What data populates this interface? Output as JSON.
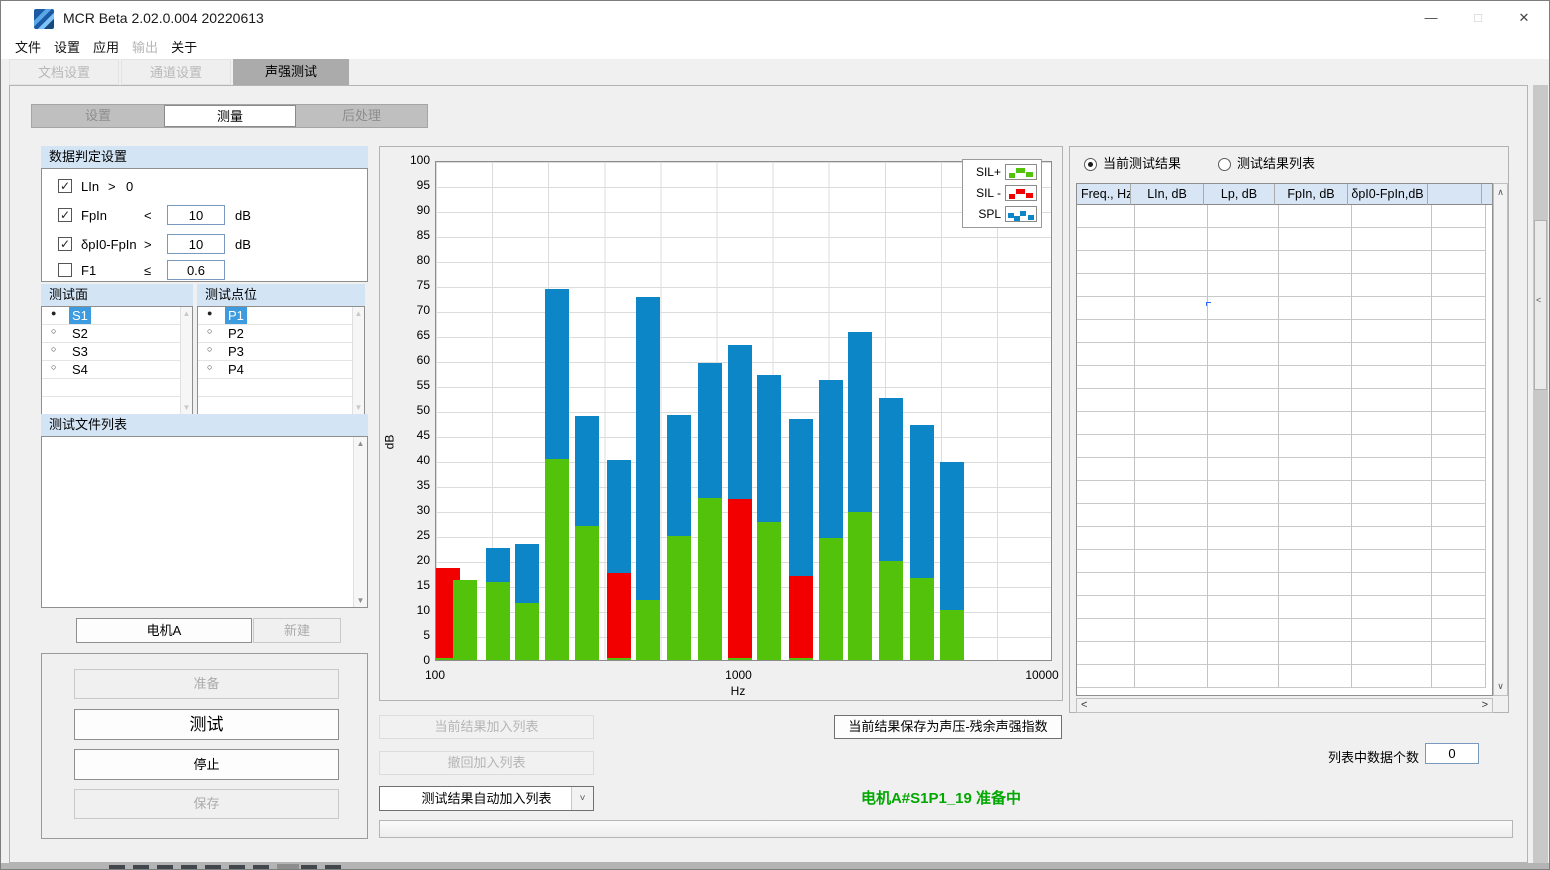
{
  "window": {
    "title": "MCR Beta 2.02.0.004 20220613",
    "minimize_glyph": "—",
    "maximize_glyph": "□",
    "close_glyph": "✕"
  },
  "menu": [
    {
      "label": "文件",
      "enabled": true
    },
    {
      "label": "设置",
      "enabled": true
    },
    {
      "label": "应用",
      "enabled": true
    },
    {
      "label": "输出",
      "enabled": false
    },
    {
      "label": "关于",
      "enabled": true
    }
  ],
  "main_tabs": [
    {
      "label": "文档设置",
      "active": false
    },
    {
      "label": "通道设置",
      "active": false
    },
    {
      "label": "声强测试",
      "active": true
    }
  ],
  "sub_tabs": [
    {
      "label": "设置",
      "active": false
    },
    {
      "label": "测量",
      "active": true
    },
    {
      "label": "后处理",
      "active": false
    }
  ],
  "criteria": {
    "header": "数据判定设置",
    "rows": [
      {
        "checked": true,
        "name": "LIn",
        "op": ">",
        "value": "0",
        "boxed": false,
        "unit": ""
      },
      {
        "checked": true,
        "name": "FpIn",
        "op": "<",
        "value": "10",
        "boxed": true,
        "unit": "dB"
      },
      {
        "checked": true,
        "name": "δpI0-FpIn",
        "op": ">",
        "value": "10",
        "boxed": true,
        "unit": "dB"
      },
      {
        "checked": false,
        "name": "F1",
        "op": "≤",
        "value": "0.6",
        "boxed": true,
        "unit": ""
      }
    ]
  },
  "surface_list": {
    "header": "测试面",
    "items": [
      {
        "label": "S1",
        "selected": true
      },
      {
        "label": "S2",
        "selected": false
      },
      {
        "label": "S3",
        "selected": false
      },
      {
        "label": "S4",
        "selected": false
      }
    ],
    "empty_rows": 2
  },
  "point_list": {
    "header": "测试点位",
    "items": [
      {
        "label": "P1",
        "selected": true
      },
      {
        "label": "P2",
        "selected": false
      },
      {
        "label": "P3",
        "selected": false
      },
      {
        "label": "P4",
        "selected": false
      }
    ],
    "empty_rows": 2
  },
  "file_list": {
    "header": "测试文件列表"
  },
  "project": {
    "current": "电机A",
    "new_label": "新建"
  },
  "run_buttons": [
    {
      "label": "准备",
      "enabled": false,
      "big": false
    },
    {
      "label": "测试",
      "enabled": true,
      "big": true
    },
    {
      "label": "停止",
      "enabled": true,
      "big": false
    },
    {
      "label": "保存",
      "enabled": false,
      "big": false
    }
  ],
  "actions": {
    "add_current": "当前结果加入列表",
    "undo_add": "撤回加入列表",
    "auto_add": "测试结果自动加入列表",
    "save_as_pressure": "当前结果保存为声压-残余声强指数"
  },
  "status": {
    "text": "电机A#S1P1_19  准备中",
    "color": "#00a800"
  },
  "results": {
    "radio_current": {
      "label": "当前测试结果",
      "selected": true
    },
    "radio_list": {
      "label": "测试结果列表",
      "selected": false
    },
    "columns": [
      "Freq., Hz",
      "LIn, dB",
      "Lp, dB",
      "FpIn, dB",
      "δpI0-FpIn,dB",
      ""
    ],
    "empty_row_count": 21,
    "count_label": "列表中数据个数",
    "count_value": "0"
  },
  "chart_data": {
    "type": "bar",
    "x_scale": "log",
    "title": "",
    "xlabel": "Hz",
    "ylabel": "dB",
    "ylim": [
      0,
      100
    ],
    "ytick_step": 5,
    "xtick_labels": [
      "100",
      "1000",
      "10000"
    ],
    "grid": true,
    "legend_position": "top-right",
    "legend": [
      {
        "label": "SIL+",
        "color": "#53c20b"
      },
      {
        "label": "SIL -",
        "color": "#f20000"
      },
      {
        "label": "SPL",
        "color": "#0d86c8"
      }
    ],
    "categories_hz": [
      100,
      125,
      160,
      200,
      250,
      315,
      400,
      500,
      630,
      800,
      1000,
      1250,
      1600,
      2000,
      2500,
      3150,
      4000,
      5000
    ],
    "series": [
      {
        "name": "SIL+",
        "color": "#53c20b",
        "values": [
          0.4,
          16.1,
          15.7,
          11.5,
          40.3,
          26.8,
          0.4,
          12.0,
          24.9,
          32.5,
          0.4,
          27.6,
          0.4,
          24.4,
          29.7,
          19.8,
          16.5,
          10.0
        ]
      },
      {
        "name": "SIL -",
        "color": "#f20000",
        "values": [
          18.4,
          null,
          null,
          null,
          null,
          null,
          17.4,
          null,
          null,
          null,
          32.2,
          null,
          16.9,
          null,
          null,
          null,
          null,
          null
        ]
      },
      {
        "name": "SPL",
        "color": "#0d86c8",
        "values": [
          null,
          null,
          22.5,
          23.3,
          74.2,
          48.9,
          40.0,
          72.7,
          49.1,
          59.5,
          63.1,
          57.1,
          48.2,
          56.1,
          65.7,
          52.5,
          47.0,
          39.7
        ]
      }
    ]
  },
  "colors": {
    "sil_plus": "#53c20b",
    "sil_minus": "#f20000",
    "spl": "#0d86c8",
    "section_header_bg": "#d3e4f5",
    "selection_bg": "#3d9be0",
    "table_header_bg": "#d7e5f4",
    "status_green": "#00a800"
  }
}
